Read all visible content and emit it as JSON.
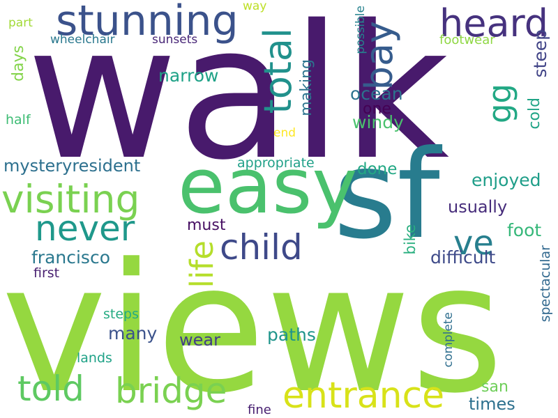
{
  "background": "#ffffff",
  "words": [
    {
      "text": "walk",
      "color": "#481a6c"
    },
    {
      "text": "views",
      "color": "#95d840"
    },
    {
      "text": "sf",
      "color": "#287c8e"
    },
    {
      "text": "easy",
      "color": "#4ac16d"
    },
    {
      "text": "stunning",
      "color": "#3b528b"
    },
    {
      "text": "heard",
      "color": "#46327e"
    },
    {
      "text": "bay",
      "color": "#365c8d"
    },
    {
      "text": "total",
      "color": "#21918c"
    },
    {
      "text": "visiting",
      "color": "#7ad151"
    },
    {
      "text": "never",
      "color": "#1f988b"
    },
    {
      "text": "child",
      "color": "#3e4989"
    },
    {
      "text": "life",
      "color": "#b5de2b"
    },
    {
      "text": "ve",
      "color": "#277f8e"
    },
    {
      "text": "gg",
      "color": "#22a884"
    },
    {
      "text": "told",
      "color": "#5ec962"
    },
    {
      "text": "bridge",
      "color": "#7ad151"
    },
    {
      "text": "entrance",
      "color": "#d8e219"
    },
    {
      "text": "way",
      "color": "#bddf26"
    },
    {
      "text": "part",
      "color": "#a2da37"
    },
    {
      "text": "wheelchair",
      "color": "#2a788e"
    },
    {
      "text": "sunsets",
      "color": "#482677"
    },
    {
      "text": "possible",
      "color": "#26828e"
    },
    {
      "text": "footwear",
      "color": "#8fd744"
    },
    {
      "text": "days",
      "color": "#84d44b"
    },
    {
      "text": "narrow",
      "color": "#1fa287"
    },
    {
      "text": "making",
      "color": "#2c738e"
    },
    {
      "text": "ocean",
      "color": "#2c728e"
    },
    {
      "text": "steep",
      "color": "#414487"
    },
    {
      "text": "cold",
      "color": "#20a486"
    },
    {
      "text": "one",
      "color": "#440154"
    },
    {
      "text": "windy",
      "color": "#4ac16d"
    },
    {
      "text": "half",
      "color": "#3dbc74"
    },
    {
      "text": "end",
      "color": "#fde725"
    },
    {
      "text": "mysteryresident",
      "color": "#2d708e"
    },
    {
      "text": "appropriate",
      "color": "#1fa088"
    },
    {
      "text": "done",
      "color": "#22a884"
    },
    {
      "text": "enjoyed",
      "color": "#1f9e89"
    },
    {
      "text": "usually",
      "color": "#472d7b"
    },
    {
      "text": "must",
      "color": "#471063"
    },
    {
      "text": "foot",
      "color": "#35b779"
    },
    {
      "text": "francisco",
      "color": "#2a788e"
    },
    {
      "text": "difficult",
      "color": "#3e4a89"
    },
    {
      "text": "bike",
      "color": "#29af7f"
    },
    {
      "text": "first",
      "color": "#481f70"
    },
    {
      "text": "spectacular",
      "color": "#31688e"
    },
    {
      "text": "steps",
      "color": "#25ab82"
    },
    {
      "text": "many",
      "color": "#3b528b"
    },
    {
      "text": "complete",
      "color": "#2e6e8e"
    },
    {
      "text": "wear",
      "color": "#423f85"
    },
    {
      "text": "paths",
      "color": "#1f958b"
    },
    {
      "text": "lands",
      "color": "#1fa287"
    },
    {
      "text": "san",
      "color": "#6ece58"
    },
    {
      "text": "times",
      "color": "#2d708e"
    },
    {
      "text": "fine",
      "color": "#482071"
    }
  ]
}
